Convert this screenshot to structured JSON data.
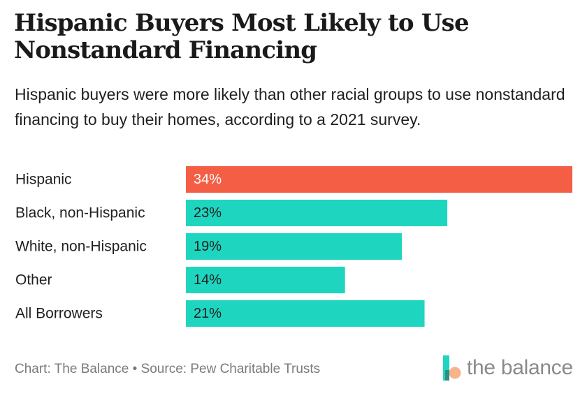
{
  "title": "Hispanic Buyers Most Likely to Use Nonstandard Financing",
  "subtitle": "Hispanic buyers were more likely than other racial groups to use nonstandard financing to buy their homes, according to a 2021 survey.",
  "footer": "Chart: The Balance • Source: Pew Charitable Trusts",
  "logo_text": "the balance",
  "colors": {
    "highlight": "#f35e45",
    "bar": "#1ed6bf",
    "text": "#1f1f1f",
    "muted": "#7a7a7a"
  },
  "chart_data": {
    "type": "bar",
    "orientation": "horizontal",
    "categories": [
      "Hispanic",
      "Black, non-Hispanic",
      "White, non-Hispanic",
      "Other",
      "All Borrowers"
    ],
    "values": [
      34,
      23,
      19,
      14,
      21
    ],
    "value_labels": [
      "34%",
      "23%",
      "19%",
      "14%",
      "21%"
    ],
    "highlight_index": 0,
    "xlim": [
      0,
      34
    ],
    "grid": false,
    "legend": "none"
  }
}
